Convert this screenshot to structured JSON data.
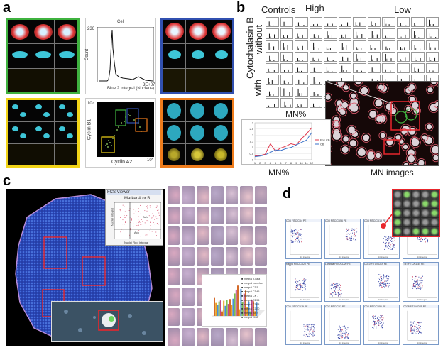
{
  "figure": {
    "panel_labels": {
      "a": "a",
      "b": "b",
      "c": "c",
      "d": "d"
    }
  },
  "panel_a": {
    "histogram": {
      "title": "Cell",
      "ylabel": "Count",
      "xlabel": "Blue 2 Integral (Nucleus)",
      "ytick_top": "236",
      "xtick_right": "3E+07"
    },
    "scatter": {
      "ylabel": "Cyclin B1",
      "xlabel": "Cyclin A2",
      "ytick_top": "10⁵",
      "xtick_right": "10⁵"
    },
    "colors": {
      "green": "#3fb23f",
      "blue": "#3150b0",
      "yellow": "#f2d417",
      "orange": "#ef7c1c"
    }
  },
  "panel_b": {
    "header_controls": "Controls",
    "header_high": "High",
    "header_low": "Low",
    "side_label_top": "Cytochalasin B",
    "side_label_without": "without",
    "side_label_with": "with",
    "chart_title": "MN%",
    "chart_xlabel": "MN%",
    "mn_images_label": "MN images",
    "chart_data": {
      "type": "line",
      "title": "MN%",
      "xlabel": "MN%",
      "ylabel": "",
      "categories": [
        "1",
        "2",
        "3",
        "4",
        "5",
        "6",
        "7",
        "8",
        "9",
        "10",
        "11",
        "12"
      ],
      "ylim": [
        0,
        3
      ],
      "yticks": [
        "0",
        "0.5",
        "1",
        "1.5",
        "2",
        "2.5",
        "3"
      ],
      "series": [
        {
          "name": "Pos CB",
          "color": "#e0344a",
          "values": [
            0.3,
            0.35,
            0.45,
            1.3,
            0.7,
            0.95,
            1.1,
            1.3,
            1.2,
            1.7,
            2.1,
            2.6
          ]
        },
        {
          "name": "CB",
          "color": "#3a72c8",
          "values": [
            0.25,
            0.3,
            0.4,
            0.6,
            0.8,
            0.75,
            0.9,
            1.0,
            1.2,
            1.4,
            1.6,
            2.2
          ]
        }
      ]
    }
  },
  "panel_c": {
    "popup_title": "FCS Viewer",
    "popup_header": "Marker A or B",
    "popup_ylabel": "Nuclei Integral",
    "popup_xlabel": "Nuclei Red Integral",
    "gate_labels": [
      "Bch",
      "Ach"
    ],
    "legend": [
      "Integral A data",
      "Integral Lumelec",
      "Integral CD3",
      "Integral CD45",
      "Integral CK 7",
      "Integral CD56",
      "Integral CD68",
      "Integral CD20",
      "Integral Ki67",
      "Integral Ki68"
    ]
  },
  "panel_d": {
    "plot_titles": [
      "CD3 FITC/CD4 PE",
      "CD8 FITC/CD56 PE",
      "CD3 FITC/CD19 PE",
      "CD3 FITC/CD16 PE",
      "Kappa FITC/CD20 PE",
      "Lambda FITC/CD20 PE",
      "CD10 FITC/CD19 PE",
      "TdT FITC/CD34 PE",
      "CD5 FITC/CD19 PE",
      "CD7 FITC/CD3 PE",
      "CD2 FITC/CD56 PE",
      "CD38 FITC/CD45 PE"
    ],
    "axis_label_x": "Int integral",
    "axis_label_y": "Int integral"
  }
}
